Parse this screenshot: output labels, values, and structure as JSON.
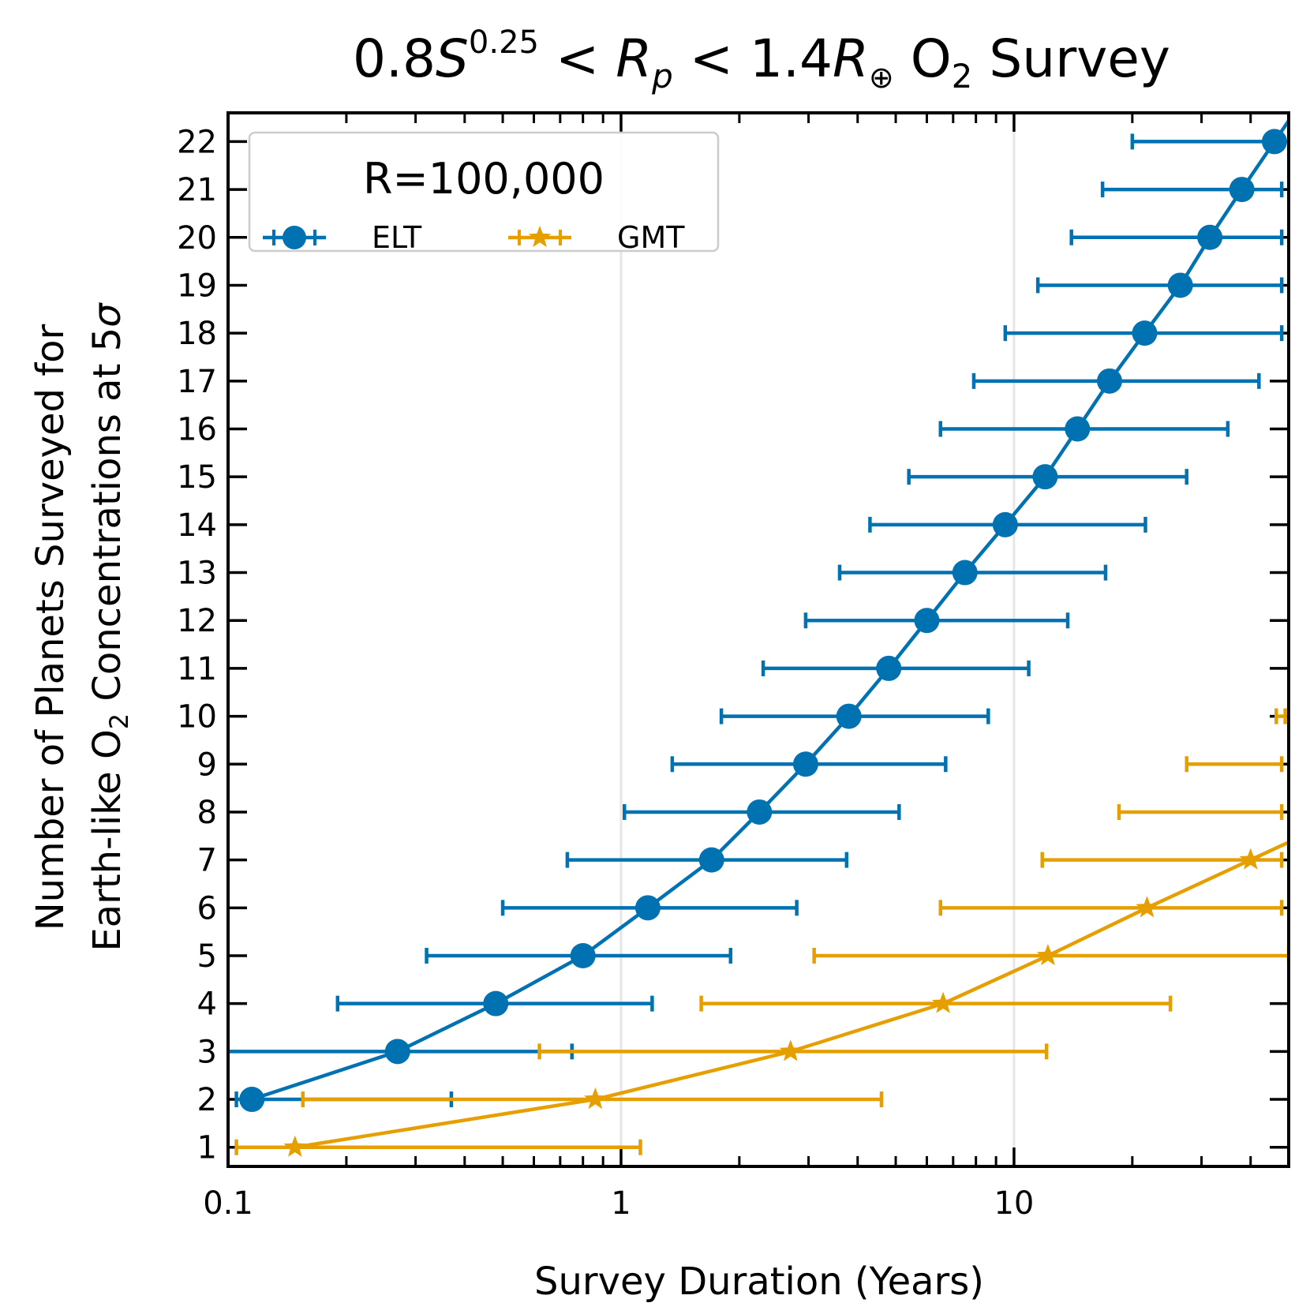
{
  "chart_data": {
    "type": "line",
    "title": {
      "prefix": "0.8",
      "S": "S",
      "S_exp": "0.25",
      "lt1": " < ",
      "R": "R",
      "R_sub": "p",
      "lt2": " < 1.4",
      "R2": "R",
      "R2_sub": "⊕",
      "O": " O",
      "O_sub": "2",
      "suffix": " Survey"
    },
    "xlabel": "Survey Duration (Years)",
    "ylabel": {
      "line1": "Number of Planets Surveyed for",
      "line2_pre": "Earth-like O",
      "line2_sub": "2",
      "line2_mid": " Concentrations at 5",
      "line2_sigma": "σ"
    },
    "xscale": "log",
    "xlim": [
      0.1,
      50
    ],
    "ylim": [
      0.6,
      22.6
    ],
    "xticks": [
      0.1,
      1,
      10
    ],
    "xtick_labels": [
      "0.1",
      "1",
      "10"
    ],
    "yticks": [
      1,
      2,
      3,
      4,
      5,
      6,
      7,
      8,
      9,
      10,
      11,
      12,
      13,
      14,
      15,
      16,
      17,
      18,
      19,
      20,
      21,
      22
    ],
    "grid": "major x only",
    "legend": {
      "title": "R=100,000",
      "placement": "top-left",
      "ncol": 2
    },
    "series": [
      {
        "name": "ELT",
        "color": "#0072b2",
        "marker": "circle",
        "x": [
          0.115,
          0.27,
          0.48,
          0.8,
          1.17,
          1.7,
          2.25,
          2.95,
          3.8,
          4.8,
          6.0,
          7.5,
          9.5,
          12.0,
          14.5,
          17.5,
          21.5,
          26.5,
          31.5,
          38.0,
          46.0
        ],
        "y": [
          2,
          3,
          4,
          5,
          6,
          7,
          8,
          9,
          10,
          11,
          12,
          13,
          14,
          15,
          16,
          17,
          18,
          19,
          20,
          21,
          22
        ],
        "xerr_low": [
          0.105,
          0.09,
          0.19,
          0.32,
          0.5,
          0.73,
          1.02,
          1.35,
          1.8,
          2.3,
          2.95,
          3.6,
          4.3,
          5.4,
          6.5,
          7.9,
          9.5,
          11.5,
          14.0,
          16.8,
          20.0
        ],
        "xerr_high": [
          0.37,
          0.75,
          1.2,
          1.9,
          2.8,
          3.75,
          5.1,
          6.7,
          8.6,
          10.9,
          13.7,
          17.1,
          21.6,
          27.5,
          35.0,
          42.0,
          48.0,
          48.0,
          48.0,
          48.0,
          48.0
        ]
      },
      {
        "name": "GMT",
        "color": "#e69f00",
        "marker": "star",
        "x": [
          0.148,
          0.86,
          2.7,
          6.6,
          12.2,
          21.8,
          40.0
        ],
        "y": [
          1,
          2,
          3,
          4,
          5,
          6,
          7
        ],
        "xerr_low": [
          0.105,
          0.155,
          0.62,
          1.6,
          3.1,
          6.5,
          11.8
        ],
        "xerr_high": [
          1.12,
          4.6,
          12.1,
          25.0,
          50.0,
          48.0,
          48.0
        ],
        "extra_bars": [
          {
            "y": 8,
            "low": 18.5,
            "high": 48.0
          },
          {
            "y": 9,
            "low": 27.5,
            "high": 48.0
          },
          {
            "y": 10,
            "low": 46.5,
            "high": 49.0
          }
        ]
      }
    ]
  }
}
